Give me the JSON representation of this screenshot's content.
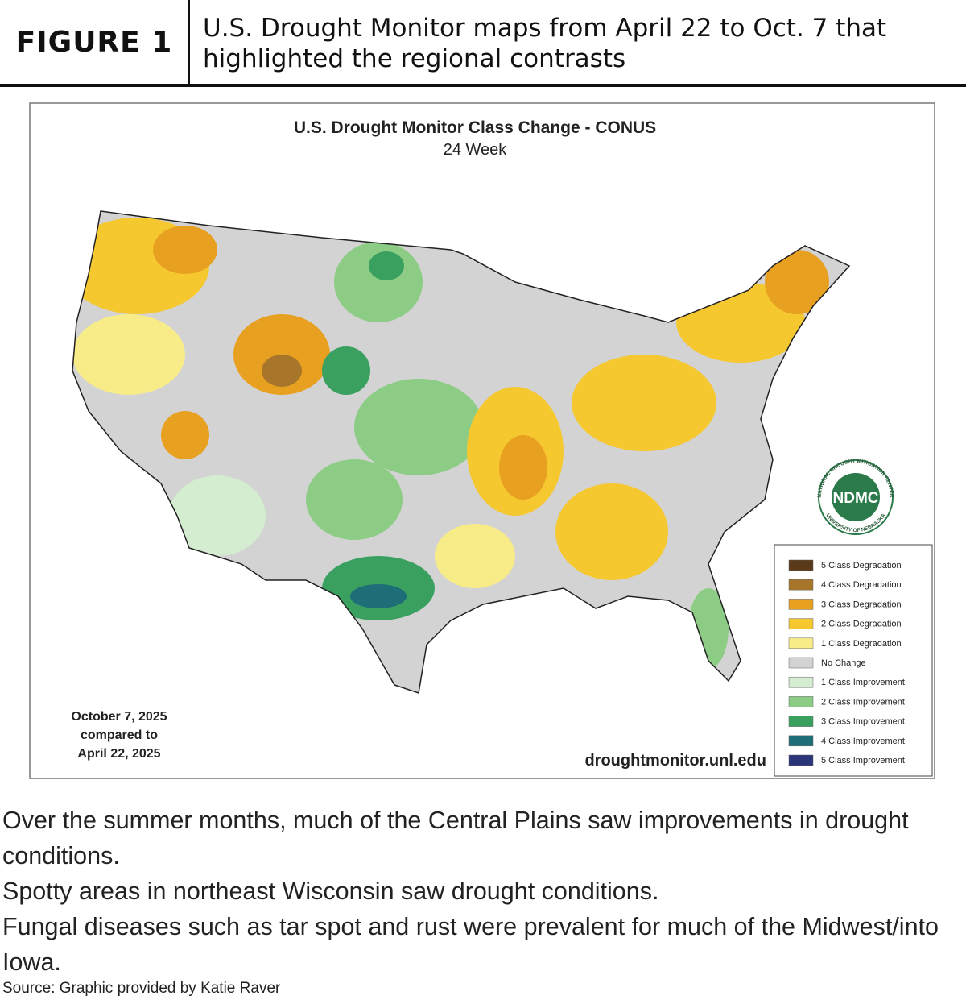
{
  "header": {
    "label": "FIGURE 1",
    "title": "U.S. Drought Monitor maps from April 22 to Oct. 7 that highlighted the regional contrasts"
  },
  "map": {
    "title": "U.S. Drought Monitor Class Change - CONUS",
    "subtitle": "24 Week",
    "date_note": [
      "October 7, 2025",
      "compared to",
      "April 22, 2025"
    ],
    "url": "droughtmonitor.unl.edu",
    "logo": {
      "text": "NDMC",
      "ring_top": "NATIONAL DROUGHT MITIGATION CENTER",
      "ring_bottom": "UNIVERSITY OF NEBRASKA"
    },
    "legend": [
      {
        "label": "5 Class Degradation",
        "color": "#5a3a1a"
      },
      {
        "label": "4 Class Degradation",
        "color": "#a8762a"
      },
      {
        "label": "3 Class Degradation",
        "color": "#e8a020"
      },
      {
        "label": "2 Class Degradation",
        "color": "#f5c830"
      },
      {
        "label": "1 Class Degradation",
        "color": "#f8ec88"
      },
      {
        "label": "No Change",
        "color": "#d3d3d3"
      },
      {
        "label": "1 Class Improvement",
        "color": "#d4ecd0"
      },
      {
        "label": "2 Class Improvement",
        "color": "#8ccc84"
      },
      {
        "label": "3 Class Improvement",
        "color": "#3aa060"
      },
      {
        "label": "4 Class Improvement",
        "color": "#1e6e78"
      },
      {
        "label": "5 Class Improvement",
        "color": "#2a3478"
      }
    ]
  },
  "caption": [
    "Over the summer months, much of the Central Plains saw improvements in drought conditions.",
    "Spotty areas in northeast Wisconsin saw drought conditions.",
    "Fungal diseases such as tar spot and rust were prevalent for much of the Midwest/into Iowa."
  ],
  "source": "Source: Graphic provided by Katie Raver"
}
